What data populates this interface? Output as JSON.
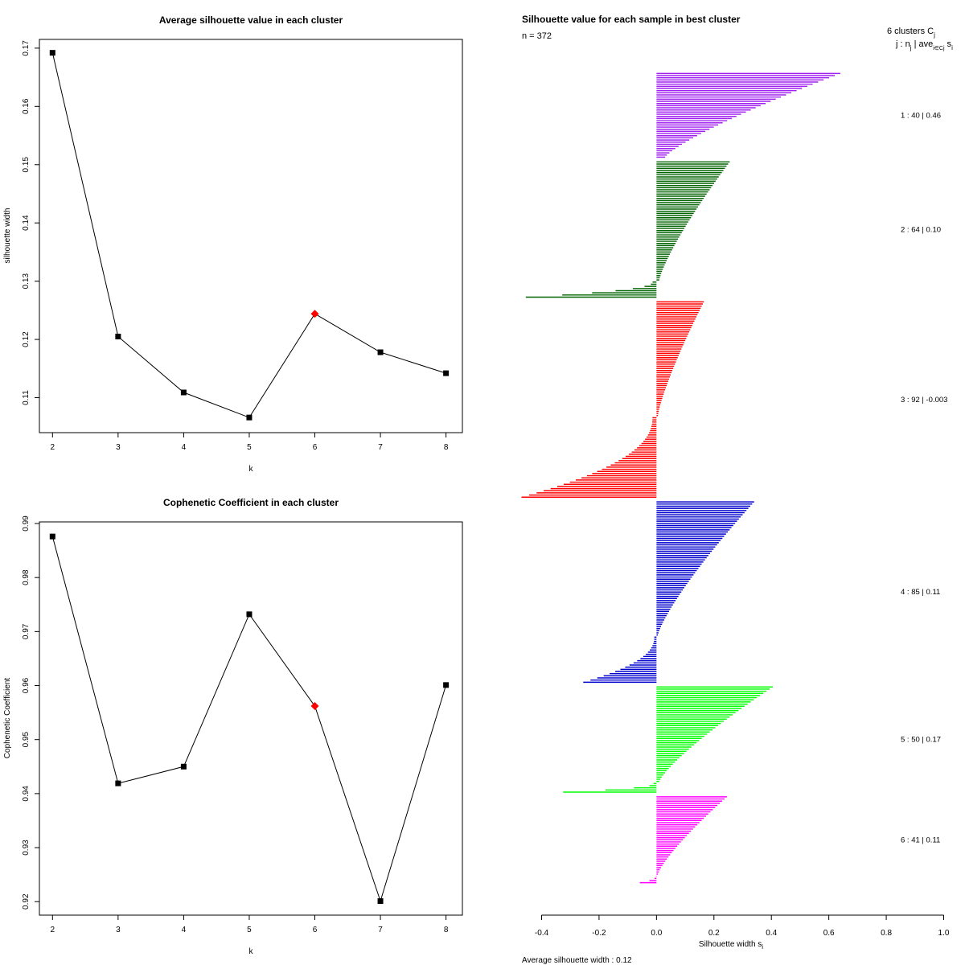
{
  "chart_data": [
    {
      "type": "line",
      "title": "Average silhouette value in each cluster",
      "xlabel": "k",
      "ylabel": "silhouette width",
      "x": [
        2,
        3,
        4,
        5,
        6,
        7,
        8
      ],
      "y": [
        0.1692,
        0.1205,
        0.1109,
        0.1066,
        0.1244,
        0.1178,
        0.1142
      ],
      "highlight_index": 4,
      "highlight_color": "#ff0000",
      "xlim": [
        1.8,
        8.25
      ],
      "ylim": [
        0.104,
        0.1715
      ],
      "xticks": [
        2,
        3,
        4,
        5,
        6,
        7,
        8
      ],
      "yticks": [
        0.11,
        0.12,
        0.13,
        0.14,
        0.15,
        0.16,
        0.17
      ],
      "ytick_labels": [
        "0.11",
        "0.12",
        "0.13",
        "0.14",
        "0.15",
        "0.16",
        "0.17"
      ]
    },
    {
      "type": "line",
      "title": "Cophenetic Coefficient in each cluster",
      "xlabel": "k",
      "ylabel": "Cophenetic Coefficient",
      "x": [
        2,
        3,
        4,
        5,
        6,
        7,
        8
      ],
      "y": [
        0.9876,
        0.9419,
        0.945,
        0.9732,
        0.9562,
        0.9201,
        0.9601
      ],
      "highlight_index": 4,
      "highlight_color": "#ff0000",
      "xlim": [
        1.8,
        8.25
      ],
      "ylim": [
        0.9175,
        0.9903
      ],
      "xticks": [
        2,
        3,
        4,
        5,
        6,
        7,
        8
      ],
      "yticks": [
        0.92,
        0.93,
        0.94,
        0.95,
        0.96,
        0.97,
        0.98,
        0.99
      ],
      "ytick_labels": [
        "0.92",
        "0.93",
        "0.94",
        "0.95",
        "0.96",
        "0.97",
        "0.98",
        "0.99"
      ]
    },
    {
      "type": "bar",
      "orientation": "horizontal",
      "title": "Silhouette value for each sample in best cluster",
      "n_label": "n = 372",
      "header_line1": "6  clusters  C",
      "header_line1_sub": "j",
      "header_line2": "j :  n",
      "header_line2_sub": "j",
      "header_line2_tail": " | ave",
      "header_line2_sub2": "i∈Cj",
      "header_line2_end": " s",
      "header_line2_sub3": "i",
      "xlabel": "Silhouette width s",
      "xlabel_sub": "i",
      "xlim": [
        -0.4,
        1.0
      ],
      "xticks": [
        -0.4,
        -0.2,
        0.0,
        0.2,
        0.4,
        0.6,
        0.8,
        1.0
      ],
      "xtick_labels": [
        "-0.4",
        "-0.2",
        "0.0",
        "0.2",
        "0.4",
        "0.6",
        "0.8",
        "1.0"
      ],
      "footer": "Average silhouette width :  0.12",
      "clusters": [
        {
          "label": "1 :   40  |  0.46",
          "n": 40,
          "color": "#a020f0",
          "max": 0.64,
          "min": 0.03,
          "min_neg": 0,
          "n_neg": 0
        },
        {
          "label": "2 :   64  |  0.10",
          "n": 64,
          "color": "#006400",
          "max": 0.255,
          "min": 0.01,
          "min_neg": -0.455,
          "n_neg": 8
        },
        {
          "label": "3 :   92  |  -0.003",
          "n": 92,
          "color": "#ff0000",
          "max": 0.165,
          "min": 0.005,
          "min_neg": -0.47,
          "n_neg": 38
        },
        {
          "label": "4 :   85  |  0.11",
          "n": 85,
          "color": "#0000cd",
          "max": 0.34,
          "min": 0.005,
          "min_neg": -0.255,
          "n_neg": 22
        },
        {
          "label": "5 :   50  |  0.17",
          "n": 50,
          "color": "#00ff00",
          "max": 0.405,
          "min": 0.01,
          "min_neg": -0.325,
          "n_neg": 5
        },
        {
          "label": "6 :   41  |  0.11",
          "n": 41,
          "color": "#ff00ff",
          "max": 0.245,
          "min": 0.005,
          "min_neg": -0.058,
          "n_neg": 4
        }
      ]
    }
  ]
}
